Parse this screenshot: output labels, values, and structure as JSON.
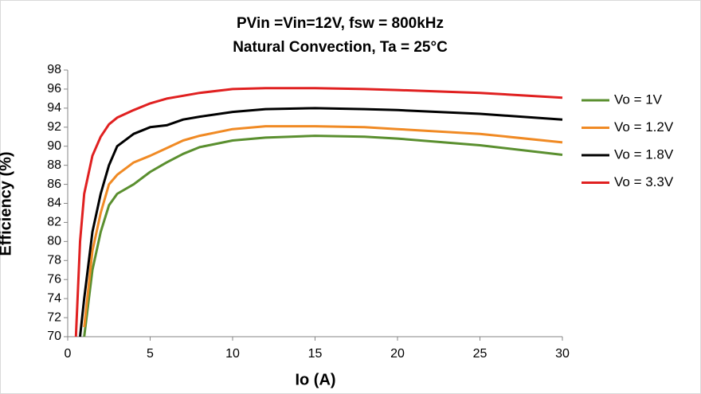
{
  "chart_data": {
    "type": "line",
    "title": "PVin =Vin=12V, fsw = 800kHz",
    "subtitle": "Natural Convection, Ta = 25°C",
    "x_label": "Io (A)",
    "y_label": "Efficiency (%)",
    "x": [
      0.5,
      0.75,
      1,
      1.5,
      2,
      2.5,
      3,
      4,
      5,
      6,
      7,
      8,
      10,
      12,
      15,
      18,
      20,
      25,
      30
    ],
    "series": [
      {
        "name": "Vo = 1V",
        "color": "#5a8f2f",
        "values": [
          null,
          null,
          70,
          77,
          81,
          83.8,
          85,
          86,
          87.3,
          88.3,
          89.2,
          89.9,
          90.6,
          90.9,
          91.1,
          91,
          90.8,
          90.1,
          89.1
        ]
      },
      {
        "name": "Vo = 1.2V",
        "color": "#f08a24",
        "values": [
          null,
          null,
          71,
          79,
          83,
          86,
          87,
          88.3,
          89,
          89.8,
          90.6,
          91.1,
          91.8,
          92.1,
          92.1,
          92,
          91.8,
          91.3,
          90.4
        ]
      },
      {
        "name": "Vo = 1.8V",
        "color": "#000000",
        "values": [
          null,
          70,
          74,
          81,
          85,
          88,
          90,
          91.3,
          92,
          92.2,
          92.8,
          93.1,
          93.6,
          93.9,
          94,
          93.9,
          93.8,
          93.4,
          92.8
        ]
      },
      {
        "name": "Vo = 3.3V",
        "color": "#e02020",
        "values": [
          70,
          80,
          85,
          89,
          91,
          92.3,
          93,
          93.8,
          94.5,
          95,
          95.3,
          95.6,
          96,
          96.1,
          96.1,
          96,
          95.9,
          95.6,
          95.1
        ]
      }
    ],
    "xlim": [
      0,
      30
    ],
    "xticks": [
      0,
      5,
      10,
      15,
      20,
      25,
      30
    ],
    "ylim": [
      70,
      98
    ],
    "yticks": [
      70,
      72,
      74,
      76,
      78,
      80,
      82,
      84,
      86,
      88,
      90,
      92,
      94,
      96,
      98
    ],
    "grid": false,
    "legend": "right"
  }
}
